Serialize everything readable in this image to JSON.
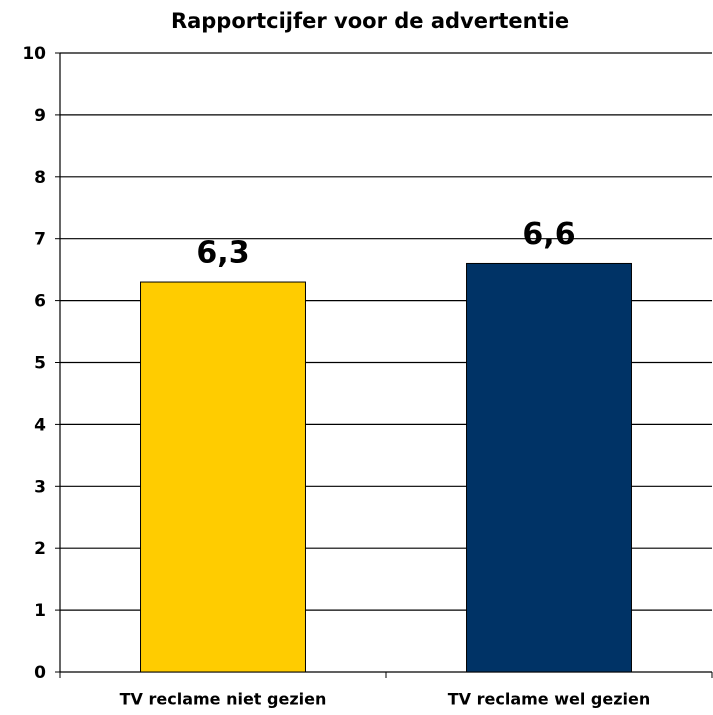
{
  "chart_data": {
    "type": "bar",
    "title": "Rapportcijfer voor de advertentie",
    "categories": [
      "TV reclame niet gezien",
      "TV reclame wel gezien"
    ],
    "values": [
      6.3,
      6.6
    ],
    "value_labels": [
      "6,3",
      "6,6"
    ],
    "colors": [
      "#ffcc00",
      "#003366"
    ],
    "ylim": [
      0,
      10
    ],
    "yticks": [
      0,
      1,
      2,
      3,
      4,
      5,
      6,
      7,
      8,
      9,
      10
    ],
    "grid": true
  }
}
